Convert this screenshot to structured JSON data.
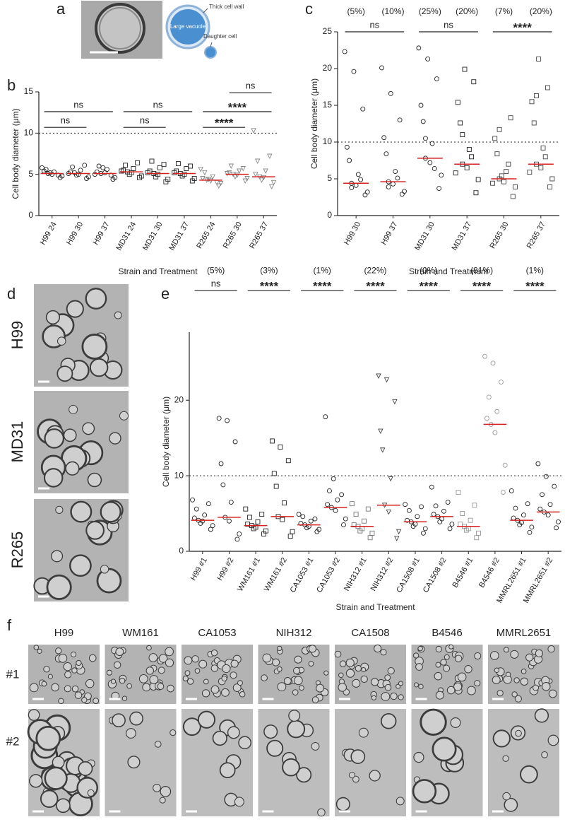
{
  "figure": {
    "panels": [
      "a",
      "b",
      "c",
      "d",
      "e",
      "f"
    ],
    "diagram_labels": [
      "Thick cell wall",
      "Large vacuole",
      "Daughter cell"
    ],
    "d_labels": [
      "H99",
      "MD31",
      "R265"
    ],
    "f_strains": [
      "H99",
      "WM161",
      "CA1053",
      "NIH312",
      "CA1508",
      "B4546",
      "MMRL2651"
    ],
    "f_rows": [
      "#1",
      "#2"
    ]
  },
  "chart_data": [
    {
      "type": "dot",
      "xlabel": "Strain and Treatment",
      "ylabel": "Cell body diameter (μm)",
      "categories": [
        "H99 24",
        "H99 30",
        "H99 37",
        "MD31 24",
        "MD31 30",
        "MD31 37",
        "R265 24",
        "R265 30",
        "R265 37"
      ],
      "markers": [
        "circle",
        "circle",
        "circle",
        "square",
        "square",
        "square",
        "triangle",
        "triangle",
        "triangle"
      ],
      "colors": [
        "#222222",
        "#222222",
        "#222222",
        "#222222",
        "#222222",
        "#222222",
        "#888888",
        "#888888",
        "#888888"
      ],
      "median_color": "#d62020",
      "points": [
        [
          5.1,
          4.8,
          5.3,
          5.6,
          4.6,
          5.0,
          5.4,
          4.9,
          5.2,
          5.8
        ],
        [
          5.2,
          4.7,
          5.5,
          5.9,
          4.5,
          5.0,
          5.3,
          6.1,
          4.9,
          5.1
        ],
        [
          5.1,
          4.6,
          5.6,
          6.0,
          4.4,
          5.2,
          5.3,
          4.9,
          5.8,
          5.0
        ],
        [
          5.3,
          4.8,
          5.7,
          6.1,
          4.6,
          5.2,
          5.5,
          6.4,
          5.0,
          5.4
        ],
        [
          5.1,
          4.4,
          5.8,
          6.6,
          4.1,
          5.0,
          5.4,
          6.2,
          4.7,
          5.2
        ],
        [
          5.1,
          4.5,
          5.7,
          6.3,
          4.2,
          5.0,
          5.4,
          6.0,
          4.8,
          5.2
        ],
        [
          4.3,
          3.9,
          4.7,
          5.2,
          3.6,
          4.2,
          4.5,
          4.0,
          4.4,
          5.6
        ],
        [
          5.0,
          4.5,
          5.4,
          6.0,
          4.2,
          4.9,
          5.2,
          5.7,
          4.7,
          5.1
        ],
        [
          4.7,
          4.0,
          5.4,
          6.6,
          3.5,
          4.6,
          5.0,
          7.2,
          4.3,
          10.3
        ]
      ],
      "medians": [
        5.1,
        5.1,
        5.1,
        5.3,
        5.1,
        5.1,
        4.3,
        5.0,
        4.7
      ],
      "threshold": 10,
      "ylim": [
        0,
        15
      ],
      "yticks": [
        0,
        5,
        10,
        15
      ],
      "brackets": [
        {
          "from": 0,
          "to": 1,
          "y": 10.7,
          "text": "ns"
        },
        {
          "from": 0,
          "to": 2,
          "y": 12.6,
          "text": "ns"
        },
        {
          "from": 3,
          "to": 4,
          "y": 10.7,
          "text": "ns"
        },
        {
          "from": 3,
          "to": 5,
          "y": 12.6,
          "text": "ns"
        },
        {
          "from": 6,
          "to": 7,
          "y": 10.7,
          "text": "****"
        },
        {
          "from": 6,
          "to": 8,
          "y": 12.6,
          "text": "****"
        },
        {
          "from": 7,
          "to": 8,
          "y": 14.9,
          "text": "ns"
        }
      ]
    },
    {
      "type": "dot",
      "xlabel": "Strain and Treatment",
      "ylabel": "Cell body diameter (μm)",
      "categories": [
        "H99 30",
        "H99 37",
        "MD31 30",
        "MD31 37",
        "R265 30",
        "R265 37"
      ],
      "markers": [
        "circle",
        "circle",
        "circle",
        "square",
        "square",
        "square"
      ],
      "colors": [
        "#222222",
        "#222222",
        "#222222",
        "#222222",
        "#444444",
        "#444444"
      ],
      "median_color": "#d62020",
      "points": [
        [
          4.4,
          3.2,
          5.6,
          7.5,
          2.8,
          4.1,
          9.3,
          14.5,
          19.6,
          22.3,
          4.9,
          3.8
        ],
        [
          4.6,
          3.3,
          6.0,
          8.4,
          2.9,
          4.3,
          10.6,
          13.0,
          16.6,
          20.1,
          5.1,
          3.9
        ],
        [
          7.8,
          5.5,
          9.8,
          12.8,
          3.7,
          7.2,
          15.0,
          18.6,
          21.3,
          22.8,
          6.4,
          10.5
        ],
        [
          7.0,
          4.9,
          9.0,
          12.6,
          3.1,
          6.5,
          15.4,
          18.2,
          19.9,
          5.8,
          8.0,
          11.0
        ],
        [
          5.0,
          3.9,
          6.0,
          8.4,
          2.6,
          4.6,
          10.5,
          13.3,
          5.4,
          4.4,
          7.0,
          11.7
        ],
        [
          7.0,
          5.0,
          9.2,
          12.6,
          3.9,
          6.5,
          15.5,
          17.4,
          21.3,
          5.9,
          8.0,
          16.3
        ]
      ],
      "medians": [
        4.4,
        4.6,
        7.8,
        7.0,
        5.0,
        7.0
      ],
      "threshold": 10,
      "ylim": [
        0,
        25
      ],
      "yticks": [
        0,
        5,
        10,
        15,
        20,
        25
      ],
      "top_labels": [
        "(5%)",
        "(10%)",
        "(25%)",
        "(20%)",
        "(7%)",
        "(20%)"
      ],
      "brackets": [
        {
          "from": 0,
          "to": 1,
          "y": 25,
          "text": "ns"
        },
        {
          "from": 2,
          "to": 3,
          "y": 25,
          "text": "ns"
        },
        {
          "from": 4,
          "to": 5,
          "y": 25,
          "text": "****"
        }
      ]
    },
    {
      "type": "dot",
      "xlabel": "Strain and Treatment",
      "ylabel": "Cell body diameter (μm)",
      "categories": [
        "H99 #1",
        "H99 #2",
        "WM161 #1",
        "WM161 #2",
        "CA1053 #1",
        "CA1053 #2",
        "NIH312 #1",
        "NIH312 #2",
        "CA1508 #1",
        "CA1508 #2",
        "B4546 #1",
        "B4546 #2",
        "MMRL2651 #1",
        "MMRL2651 #2"
      ],
      "markers": [
        "circle",
        "circle",
        "square",
        "square",
        "circle",
        "circle",
        "square",
        "triangle",
        "circle",
        "circle",
        "square",
        "circle",
        "circle",
        "circle"
      ],
      "colors": [
        "#222222",
        "#222222",
        "#222222",
        "#222222",
        "#222222",
        "#222222",
        "#777777",
        "#444444",
        "#222222",
        "#222222",
        "#999999",
        "#999999",
        "#222222",
        "#222222"
      ],
      "median_color": "#d62020",
      "points": [
        [
          4.1,
          3.4,
          4.8,
          5.6,
          2.9,
          4.0,
          4.4,
          6.3,
          3.7,
          6.8
        ],
        [
          4.5,
          2.3,
          6.5,
          8.8,
          1.6,
          4.0,
          11.6,
          14.5,
          17.3,
          17.6
        ],
        [
          3.4,
          2.7,
          3.9,
          4.5,
          2.3,
          3.2,
          3.6,
          4.9,
          3.0,
          5.6
        ],
        [
          4.6,
          2.6,
          6.4,
          8.6,
          2.0,
          4.2,
          10.3,
          12.0,
          13.8,
          14.6
        ],
        [
          3.5,
          2.9,
          4.0,
          4.6,
          2.6,
          3.3,
          3.7,
          4.3,
          3.1,
          4.9
        ],
        [
          5.8,
          4.3,
          6.8,
          8.0,
          3.5,
          5.4,
          6.2,
          7.5,
          9.6,
          17.8
        ],
        [
          3.3,
          2.4,
          4.0,
          4.9,
          1.8,
          3.0,
          3.5,
          5.6,
          2.7,
          6.3
        ],
        [
          6.1,
          2.6,
          9.6,
          13.4,
          1.7,
          5.2,
          15.9,
          19.8,
          22.7,
          23.2
        ],
        [
          3.9,
          3.0,
          4.6,
          5.4,
          2.4,
          3.6,
          4.1,
          5.9,
          3.3,
          6.2
        ],
        [
          4.6,
          3.6,
          5.3,
          6.0,
          3.0,
          4.3,
          4.9,
          6.5,
          3.9,
          8.5
        ],
        [
          3.3,
          2.4,
          4.1,
          5.0,
          1.8,
          3.0,
          3.6,
          6.1,
          2.8,
          7.8
        ],
        [
          16.8,
          11.4,
          18.5,
          20.4,
          7.8,
          15.7,
          17.6,
          22.4,
          24.9,
          25.8
        ],
        [
          4.1,
          3.2,
          4.8,
          5.7,
          2.5,
          3.8,
          4.4,
          6.3,
          3.5,
          8.0
        ],
        [
          5.2,
          3.9,
          6.2,
          7.5,
          3.1,
          4.8,
          5.6,
          8.6,
          9.9,
          11.6
        ]
      ],
      "medians": [
        4.1,
        4.5,
        3.4,
        4.6,
        3.5,
        5.8,
        3.3,
        6.1,
        3.9,
        4.6,
        3.3,
        16.8,
        4.1,
        5.2
      ],
      "threshold": 10,
      "ylim": [
        0,
        29
      ],
      "yticks": [
        0,
        10,
        20
      ],
      "brackets": [
        {
          "from": 0,
          "to": 1,
          "y": 34.5,
          "text": "ns",
          "note": "(5%)"
        },
        {
          "from": 2,
          "to": 3,
          "y": 34.5,
          "text": "****",
          "note": "(3%)"
        },
        {
          "from": 4,
          "to": 5,
          "y": 34.5,
          "text": "****",
          "note": "(1%)"
        },
        {
          "from": 6,
          "to": 7,
          "y": 34.5,
          "text": "****",
          "note": "(22%)"
        },
        {
          "from": 8,
          "to": 9,
          "y": 34.5,
          "text": "****",
          "note": "(0%)"
        },
        {
          "from": 10,
          "to": 11,
          "y": 34.5,
          "text": "****",
          "note": "(81%)"
        },
        {
          "from": 12,
          "to": 13,
          "y": 34.5,
          "text": "****",
          "note": "(1%)"
        }
      ]
    }
  ]
}
